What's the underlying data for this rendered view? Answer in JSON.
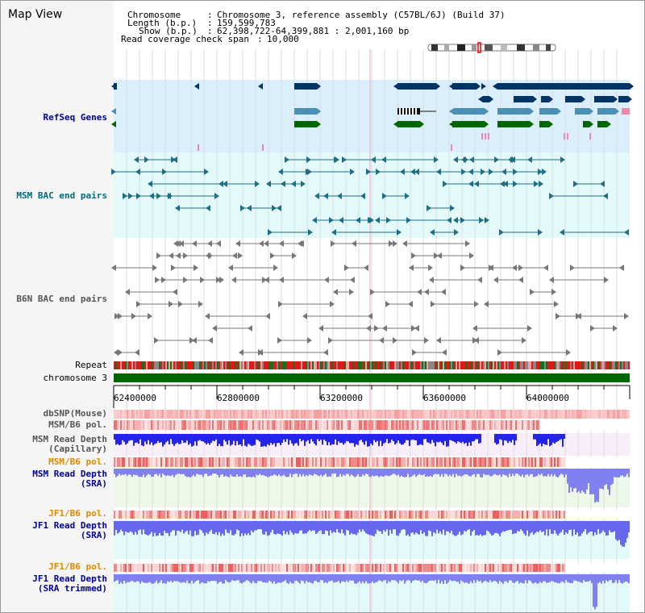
{
  "view_title": "Map View",
  "info": {
    "chromosome_key": "Chromosome",
    "chromosome_val": "Chromosome 3, reference assembly (C57BL/6J) (Build 37)",
    "length_key": "Length (b.p.)",
    "length_val": "159,599,783",
    "show_key": "Show (b.p.)",
    "show_val": "62,398,722-64,399,881 : 2,001,160 bp",
    "coverage_key": "Read coverage check span",
    "coverage_val": "10,000"
  },
  "tracks": {
    "refseq": "RefSeq Genes",
    "msm_bac": "MSM BAC end pairs",
    "b6n_bac": "B6N BAC end pairs",
    "repeat": "Repeat",
    "chromosome": "chromosome 3",
    "dbsnp": "dbSNP(Mouse)",
    "msm_pol": "MSM/B6 pol.",
    "msm_depth_cap_1": "MSM Read Depth",
    "msm_depth_cap_2": "(Capillary)",
    "msm_pol_2": "MSM/B6 pol.",
    "msm_depth_sra_1": "MSM Read Depth",
    "msm_depth_sra_2": "(SRA)",
    "jf1_pol": "JF1/B6 pol.",
    "jf1_depth_sra_1": "JF1 Read Depth",
    "jf1_depth_sra_2": "(SRA)",
    "jf1_pol_2": "JF1/B6 pol.",
    "jf1_depth_trim_1": "JF1 Read Depth",
    "jf1_depth_trim_2": "(SRA trimmed)"
  },
  "axis_ticks": [
    "62400000",
    "62800000",
    "63200000",
    "63600000",
    "64000000"
  ],
  "colors": {
    "refseq_bg": "#daeefb",
    "msm_bac_bg": "#e4fafa",
    "gene_navy": "#003366",
    "gene_steel": "#4a8fb5",
    "gene_green": "#006600",
    "chromosome_bar": "#006600",
    "depth_blue": "#1f1fdd",
    "msm_bac_teal": "#1e6f85",
    "b6n_gray": "#777777"
  }
}
